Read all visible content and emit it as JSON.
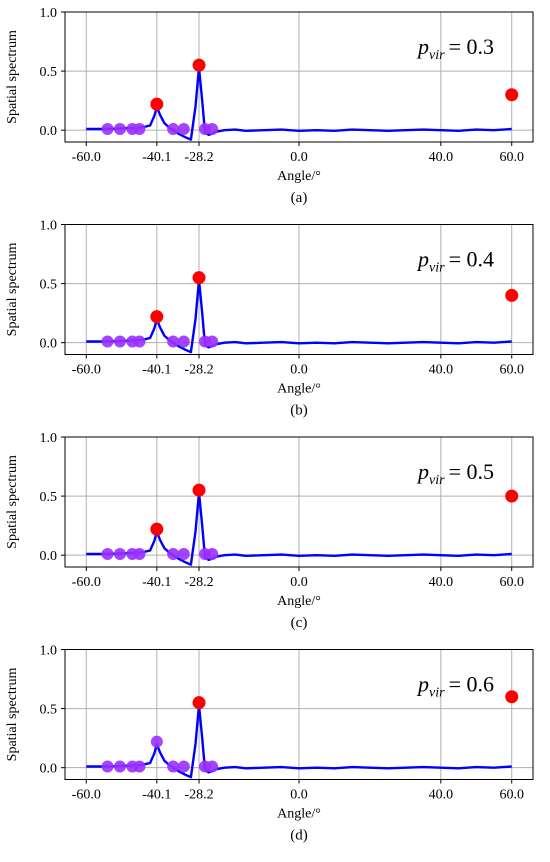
{
  "figure": {
    "colors": {
      "curve": "#0000ff",
      "red_marker": "#ff0000",
      "purple_marker": "#9b30ff",
      "grid": "#b0b0b0",
      "axis": "#000000"
    }
  },
  "chart_data": [
    {
      "type": "line",
      "panel_label": "(a)",
      "annotation": {
        "symbol": "p",
        "subscript": "vir",
        "text": "= 0.3"
      },
      "xlabel": "Angle/°",
      "ylabel": "Spatial spectrum",
      "xlim": [
        -66,
        66
      ],
      "ylim": [
        -0.1,
        1.0
      ],
      "xticks": [
        -60.0,
        -40.1,
        -28.2,
        0.0,
        40.0,
        60.0
      ],
      "xtick_labels": [
        "-60.0",
        "-40.1",
        "-28.2",
        "0.0",
        "40.0",
        "60.0"
      ],
      "yticks": [
        0.0,
        0.5,
        1.0
      ],
      "ytick_labels": [
        "0.0",
        "0.5",
        "1.0"
      ],
      "grid": true,
      "series": [
        {
          "x": [
            -60,
            -55,
            -50,
            -46,
            -44,
            -42,
            -40.8,
            -40.1,
            -39.2,
            -38,
            -36.5,
            -35,
            -34,
            -32,
            -30.5,
            -29.2,
            -28.2,
            -27.3,
            -26.5,
            -25.5,
            -24.5,
            -23,
            -21,
            -18,
            -15,
            -10,
            -5,
            0,
            5,
            10,
            15,
            20,
            25,
            30,
            35,
            40,
            45,
            50,
            55,
            60
          ],
          "y": [
            0.01,
            0.01,
            0.015,
            0.02,
            0.025,
            0.04,
            0.12,
            0.2,
            0.13,
            0.06,
            0.02,
            -0.01,
            -0.03,
            -0.06,
            -0.08,
            0.2,
            0.53,
            0.25,
            -0.02,
            -0.04,
            -0.03,
            -0.01,
            0.0,
            0.005,
            -0.005,
            0.0,
            0.005,
            -0.005,
            0.0,
            -0.005,
            0.005,
            0.0,
            -0.005,
            0.0,
            0.005,
            0.0,
            -0.005,
            0.005,
            0.0,
            0.01
          ]
        }
      ],
      "red_points": [
        {
          "x": -40.1,
          "y": 0.22
        },
        {
          "x": -28.2,
          "y": 0.55
        },
        {
          "x": 60.0,
          "y": 0.3
        }
      ],
      "purple_points": [
        {
          "x": -54,
          "y": 0.01
        },
        {
          "x": -50.5,
          "y": 0.01
        },
        {
          "x": -47,
          "y": 0.01
        },
        {
          "x": -45,
          "y": 0.01
        },
        {
          "x": -35.5,
          "y": 0.01
        },
        {
          "x": -32.5,
          "y": 0.01
        },
        {
          "x": -26.5,
          "y": 0.01
        },
        {
          "x": -24.5,
          "y": 0.01
        }
      ]
    },
    {
      "type": "line",
      "panel_label": "(b)",
      "annotation": {
        "symbol": "p",
        "subscript": "vir",
        "text": "= 0.4"
      },
      "xlabel": "Angle/°",
      "ylabel": "Spatial spectrum",
      "xlim": [
        -66,
        66
      ],
      "ylim": [
        -0.1,
        1.0
      ],
      "xticks": [
        -60.0,
        -40.1,
        -28.2,
        0.0,
        40.0,
        60.0
      ],
      "xtick_labels": [
        "-60.0",
        "-40.1",
        "-28.2",
        "0.0",
        "40.0",
        "60.0"
      ],
      "yticks": [
        0.0,
        0.5,
        1.0
      ],
      "ytick_labels": [
        "0.0",
        "0.5",
        "1.0"
      ],
      "grid": true,
      "series": [
        {
          "x": [
            -60,
            -55,
            -50,
            -46,
            -44,
            -42,
            -40.8,
            -40.1,
            -39.2,
            -38,
            -36.5,
            -35,
            -34,
            -32,
            -30.5,
            -29.2,
            -28.2,
            -27.3,
            -26.5,
            -25.5,
            -24.5,
            -23,
            -21,
            -18,
            -15,
            -10,
            -5,
            0,
            5,
            10,
            15,
            20,
            25,
            30,
            35,
            40,
            45,
            50,
            55,
            60
          ],
          "y": [
            0.01,
            0.01,
            0.015,
            0.02,
            0.025,
            0.04,
            0.12,
            0.2,
            0.13,
            0.06,
            0.02,
            -0.01,
            -0.03,
            -0.06,
            -0.08,
            0.2,
            0.53,
            0.25,
            -0.02,
            -0.04,
            -0.03,
            -0.01,
            0.0,
            0.005,
            -0.005,
            0.0,
            0.005,
            -0.005,
            0.0,
            -0.005,
            0.005,
            0.0,
            -0.005,
            0.0,
            0.005,
            0.0,
            -0.005,
            0.005,
            0.0,
            0.01
          ]
        }
      ],
      "red_points": [
        {
          "x": -40.1,
          "y": 0.22
        },
        {
          "x": -28.2,
          "y": 0.55
        },
        {
          "x": 60.0,
          "y": 0.4
        }
      ],
      "purple_points": [
        {
          "x": -54,
          "y": 0.01
        },
        {
          "x": -50.5,
          "y": 0.01
        },
        {
          "x": -47,
          "y": 0.01
        },
        {
          "x": -45,
          "y": 0.01
        },
        {
          "x": -35.5,
          "y": 0.01
        },
        {
          "x": -32.5,
          "y": 0.01
        },
        {
          "x": -26.5,
          "y": 0.01
        },
        {
          "x": -24.5,
          "y": 0.01
        }
      ]
    },
    {
      "type": "line",
      "panel_label": "(c)",
      "annotation": {
        "symbol": "p",
        "subscript": "vir",
        "text": "= 0.5"
      },
      "xlabel": "Angle/°",
      "ylabel": "Spatial spectrum",
      "xlim": [
        -66,
        66
      ],
      "ylim": [
        -0.1,
        1.0
      ],
      "xticks": [
        -60.0,
        -40.1,
        -28.2,
        0.0,
        40.0,
        60.0
      ],
      "xtick_labels": [
        "-60.0",
        "-40.1",
        "-28.2",
        "0.0",
        "40.0",
        "60.0"
      ],
      "yticks": [
        0.0,
        0.5,
        1.0
      ],
      "ytick_labels": [
        "0.0",
        "0.5",
        "1.0"
      ],
      "grid": true,
      "series": [
        {
          "x": [
            -60,
            -55,
            -50,
            -46,
            -44,
            -42,
            -40.8,
            -40.1,
            -39.2,
            -38,
            -36.5,
            -35,
            -34,
            -32,
            -30.5,
            -29.2,
            -28.2,
            -27.3,
            -26.5,
            -25.5,
            -24.5,
            -23,
            -21,
            -18,
            -15,
            -10,
            -5,
            0,
            5,
            10,
            15,
            20,
            25,
            30,
            35,
            40,
            45,
            50,
            55,
            60
          ],
          "y": [
            0.01,
            0.01,
            0.015,
            0.02,
            0.025,
            0.04,
            0.12,
            0.2,
            0.13,
            0.06,
            0.02,
            -0.01,
            -0.03,
            -0.06,
            -0.08,
            0.2,
            0.53,
            0.25,
            -0.02,
            -0.04,
            -0.03,
            -0.01,
            0.0,
            0.005,
            -0.005,
            0.0,
            0.005,
            -0.005,
            0.0,
            -0.005,
            0.005,
            0.0,
            -0.005,
            0.0,
            0.005,
            0.0,
            -0.005,
            0.005,
            0.0,
            0.01
          ]
        }
      ],
      "red_points": [
        {
          "x": -40.1,
          "y": 0.22
        },
        {
          "x": -28.2,
          "y": 0.55
        },
        {
          "x": 60.0,
          "y": 0.5
        }
      ],
      "purple_points": [
        {
          "x": -54,
          "y": 0.01
        },
        {
          "x": -50.5,
          "y": 0.01
        },
        {
          "x": -47,
          "y": 0.01
        },
        {
          "x": -45,
          "y": 0.01
        },
        {
          "x": -35.5,
          "y": 0.01
        },
        {
          "x": -32.5,
          "y": 0.01
        },
        {
          "x": -26.5,
          "y": 0.01
        },
        {
          "x": -24.5,
          "y": 0.01
        }
      ]
    },
    {
      "type": "line",
      "panel_label": "(d)",
      "annotation": {
        "symbol": "p",
        "subscript": "vir",
        "text": "= 0.6"
      },
      "xlabel": "Angle/°",
      "ylabel": "Spatial spectrum",
      "xlim": [
        -66,
        66
      ],
      "ylim": [
        -0.1,
        1.0
      ],
      "xticks": [
        -60.0,
        -40.1,
        -28.2,
        0.0,
        40.0,
        60.0
      ],
      "xtick_labels": [
        "-60.0",
        "-40.1",
        "-28.2",
        "0.0",
        "40.0",
        "60.0"
      ],
      "yticks": [
        0.0,
        0.5,
        1.0
      ],
      "ytick_labels": [
        "0.0",
        "0.5",
        "1.0"
      ],
      "grid": true,
      "series": [
        {
          "x": [
            -60,
            -55,
            -50,
            -46,
            -44,
            -42,
            -40.8,
            -40.1,
            -39.2,
            -38,
            -36.5,
            -35,
            -34,
            -32,
            -30.5,
            -29.2,
            -28.2,
            -27.3,
            -26.5,
            -25.5,
            -24.5,
            -23,
            -21,
            -18,
            -15,
            -10,
            -5,
            0,
            5,
            10,
            15,
            20,
            25,
            30,
            35,
            40,
            45,
            50,
            55,
            60
          ],
          "y": [
            0.01,
            0.01,
            0.015,
            0.02,
            0.025,
            0.04,
            0.12,
            0.2,
            0.13,
            0.06,
            0.02,
            -0.01,
            -0.03,
            -0.06,
            -0.08,
            0.2,
            0.53,
            0.25,
            -0.02,
            -0.04,
            -0.03,
            -0.01,
            0.0,
            0.005,
            -0.005,
            0.0,
            0.005,
            -0.005,
            0.0,
            -0.005,
            0.005,
            0.0,
            -0.005,
            0.0,
            0.005,
            0.0,
            -0.005,
            0.005,
            0.0,
            0.01
          ]
        }
      ],
      "red_points": [
        {
          "x": -28.2,
          "y": 0.55
        },
        {
          "x": 60.0,
          "y": 0.6
        }
      ],
      "purple_points": [
        {
          "x": -54,
          "y": 0.01
        },
        {
          "x": -50.5,
          "y": 0.01
        },
        {
          "x": -47,
          "y": 0.01
        },
        {
          "x": -45,
          "y": 0.01
        },
        {
          "x": -40.1,
          "y": 0.22
        },
        {
          "x": -35.5,
          "y": 0.01
        },
        {
          "x": -32.5,
          "y": 0.01
        },
        {
          "x": -26.5,
          "y": 0.01
        },
        {
          "x": -24.5,
          "y": 0.01
        }
      ]
    }
  ]
}
